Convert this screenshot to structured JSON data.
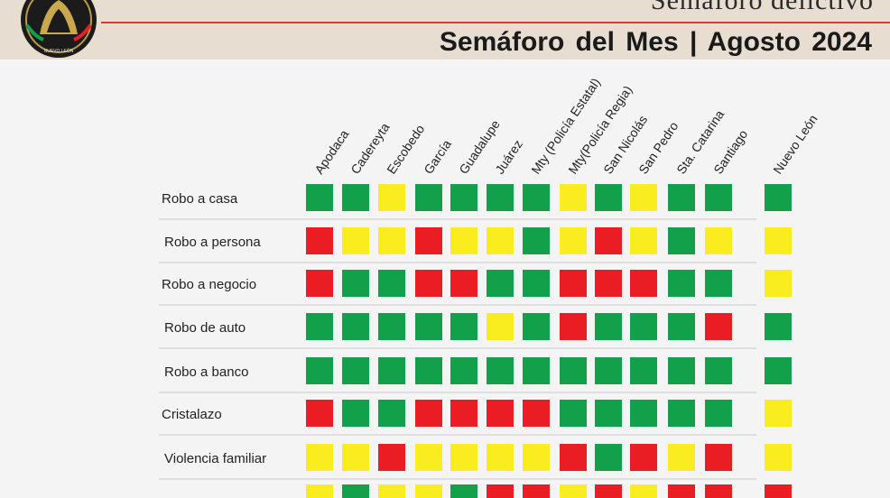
{
  "header": {
    "subtitle": "Semáforo delictivo",
    "title": "Semáforo del Mes |  Agosto  2024",
    "logo_text": "NUEVO LEÓN"
  },
  "colors": {
    "G": "#12a04b",
    "Y": "#f9ec1f",
    "R": "#ea1d24"
  },
  "chart_data": {
    "type": "heatmap",
    "legend": {
      "G": "green",
      "Y": "yellow",
      "R": "red"
    },
    "columns": [
      "Apodaca",
      "Cadereyta",
      "Escobedo",
      "García",
      "Guadalupe",
      "Juárez",
      "Mty (Policía Estatal)",
      "Mty(Policía Regia)",
      "San Nicolás",
      "San Pedro",
      "Sta. Catarina",
      "Santiago",
      "Nuevo León"
    ],
    "rows": [
      {
        "label": "Robo a casa",
        "values": [
          "G",
          "G",
          "Y",
          "G",
          "G",
          "G",
          "G",
          "Y",
          "G",
          "Y",
          "G",
          "G",
          "G"
        ]
      },
      {
        "label": "Robo a persona",
        "values": [
          "R",
          "Y",
          "Y",
          "R",
          "Y",
          "Y",
          "G",
          "Y",
          "R",
          "Y",
          "G",
          "Y",
          "Y"
        ]
      },
      {
        "label": "Robo a negocio",
        "values": [
          "R",
          "G",
          "G",
          "R",
          "R",
          "G",
          "G",
          "R",
          "R",
          "R",
          "G",
          "G",
          "Y"
        ]
      },
      {
        "label": "Robo de auto",
        "values": [
          "G",
          "G",
          "G",
          "G",
          "G",
          "Y",
          "G",
          "R",
          "G",
          "G",
          "G",
          "R",
          "G"
        ]
      },
      {
        "label": "Robo a banco",
        "values": [
          "G",
          "G",
          "G",
          "G",
          "G",
          "G",
          "G",
          "G",
          "G",
          "G",
          "G",
          "G",
          "G"
        ]
      },
      {
        "label": "Cristalazo",
        "values": [
          "R",
          "G",
          "G",
          "R",
          "R",
          "R",
          "R",
          "G",
          "G",
          "G",
          "G",
          "G",
          "Y"
        ]
      },
      {
        "label": "Violencia familiar",
        "values": [
          "Y",
          "Y",
          "R",
          "Y",
          "Y",
          "Y",
          "Y",
          "R",
          "G",
          "R",
          "Y",
          "R",
          "Y"
        ]
      },
      {
        "label": "",
        "values": [
          "Y",
          "G",
          "Y",
          "Y",
          "G",
          "R",
          "R",
          "Y",
          "R",
          "Y",
          "R",
          "R",
          "R"
        ]
      }
    ]
  }
}
